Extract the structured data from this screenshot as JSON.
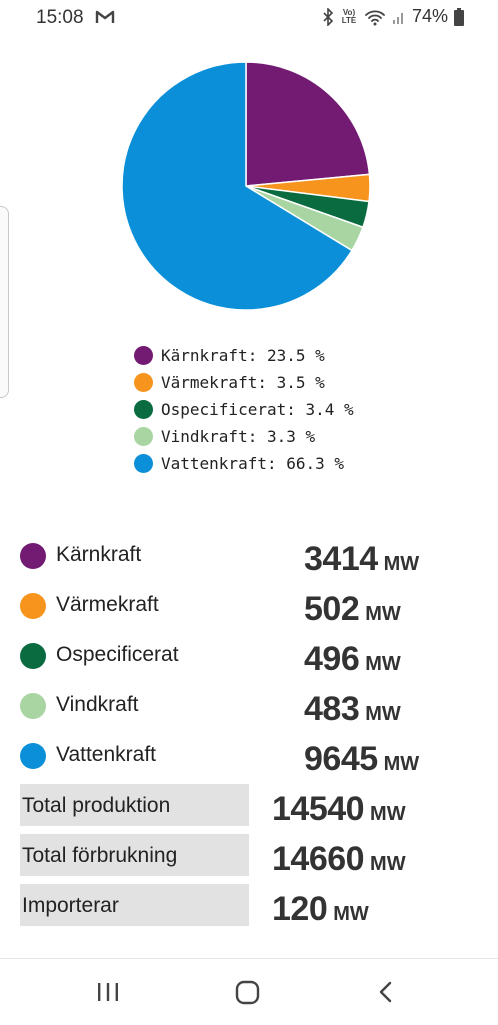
{
  "status_bar": {
    "time": "15:08",
    "lte_label": "Vo) LTE",
    "battery": "74%"
  },
  "chart_data": {
    "type": "pie",
    "labels": [
      "Kärnkraft",
      "Värmekraft",
      "Ospecificerat",
      "Vindkraft",
      "Vattenkraft"
    ],
    "values": [
      23.5,
      3.5,
      3.4,
      3.3,
      66.3
    ],
    "colors": [
      "#731a73",
      "#f7941d",
      "#0a6b40",
      "#a8d5a2",
      "#0a8fd8"
    ],
    "legend_text": [
      "Kärnkraft: 23.5 %",
      "Värmekraft: 3.5 %",
      "Ospecificerat: 3.4 %",
      "Vindkraft: 3.3 %",
      "Vattenkraft: 66.3 %"
    ],
    "legend_placement": "bottom"
  },
  "production": [
    {
      "name": "Kärnkraft",
      "value": "3414",
      "unit": "MW",
      "color": "#731a73"
    },
    {
      "name": "Värmekraft",
      "value": "502",
      "unit": "MW",
      "color": "#f7941d"
    },
    {
      "name": "Ospecificerat",
      "value": "496",
      "unit": "MW",
      "color": "#0a6b40"
    },
    {
      "name": "Vindkraft",
      "value": "483",
      "unit": "MW",
      "color": "#a8d5a2"
    },
    {
      "name": "Vattenkraft",
      "value": "9645",
      "unit": "MW",
      "color": "#0a8fd8"
    }
  ],
  "totals": [
    {
      "label": "Total produktion",
      "value": "14540",
      "unit": "MW"
    },
    {
      "label": "Total förbrukning",
      "value": "14660",
      "unit": "MW"
    },
    {
      "label": "Importerar",
      "value": "120",
      "unit": "MW"
    }
  ],
  "nav": {
    "icons": [
      "recent-apps-icon",
      "home-icon",
      "back-icon"
    ]
  }
}
